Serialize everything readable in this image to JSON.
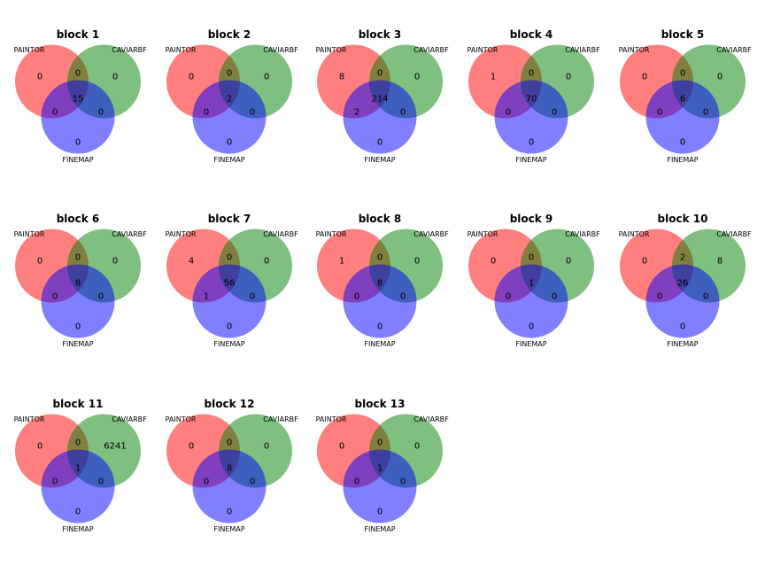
{
  "figure": {
    "set_labels": [
      "PAINTOR",
      "CAVIARBF",
      "FINEMAP"
    ],
    "colors": {
      "set_a": "#ff0000",
      "set_b": "#008000",
      "set_c": "#0000ff"
    },
    "region_order": [
      "a_only",
      "b_only",
      "ab_only",
      "c_only",
      "ac_only",
      "bc_only",
      "abc"
    ],
    "blocks": [
      {
        "title": "block 1",
        "counts": {
          "a_only": "0",
          "b_only": "0",
          "ab_only": "0",
          "c_only": "0",
          "ac_only": "0",
          "bc_only": "0",
          "abc": "15"
        }
      },
      {
        "title": "block 2",
        "counts": {
          "a_only": "0",
          "b_only": "0",
          "ab_only": "0",
          "c_only": "0",
          "ac_only": "0",
          "bc_only": "0",
          "abc": "2"
        }
      },
      {
        "title": "block 3",
        "counts": {
          "a_only": "8",
          "b_only": "0",
          "ab_only": "0",
          "c_only": "0",
          "ac_only": "2",
          "bc_only": "0",
          "abc": "214"
        }
      },
      {
        "title": "block 4",
        "counts": {
          "a_only": "1",
          "b_only": "0",
          "ab_only": "0",
          "c_only": "0",
          "ac_only": "0",
          "bc_only": "0",
          "abc": "70"
        }
      },
      {
        "title": "block 5",
        "counts": {
          "a_only": "0",
          "b_only": "0",
          "ab_only": "0",
          "c_only": "0",
          "ac_only": "0",
          "bc_only": "0",
          "abc": "6"
        }
      },
      {
        "title": "block 6",
        "counts": {
          "a_only": "0",
          "b_only": "0",
          "ab_only": "0",
          "c_only": "0",
          "ac_only": "0",
          "bc_only": "0",
          "abc": "8"
        }
      },
      {
        "title": "block 7",
        "counts": {
          "a_only": "4",
          "b_only": "0",
          "ab_only": "0",
          "c_only": "0",
          "ac_only": "1",
          "bc_only": "0",
          "abc": "56"
        }
      },
      {
        "title": "block 8",
        "counts": {
          "a_only": "1",
          "b_only": "0",
          "ab_only": "0",
          "c_only": "0",
          "ac_only": "0",
          "bc_only": "0",
          "abc": "8"
        }
      },
      {
        "title": "block 9",
        "counts": {
          "a_only": "0",
          "b_only": "0",
          "ab_only": "0",
          "c_only": "0",
          "ac_only": "0",
          "bc_only": "0",
          "abc": "1"
        }
      },
      {
        "title": "block 10",
        "counts": {
          "a_only": "0",
          "b_only": "8",
          "ab_only": "2",
          "c_only": "0",
          "ac_only": "0",
          "bc_only": "0",
          "abc": "26"
        }
      },
      {
        "title": "block 11",
        "counts": {
          "a_only": "0",
          "b_only": "6241",
          "ab_only": "0",
          "c_only": "0",
          "ac_only": "0",
          "bc_only": "0",
          "abc": "1"
        }
      },
      {
        "title": "block 12",
        "counts": {
          "a_only": "0",
          "b_only": "0",
          "ab_only": "0",
          "c_only": "0",
          "ac_only": "0",
          "bc_only": "0",
          "abc": "8"
        }
      },
      {
        "title": "block 13",
        "counts": {
          "a_only": "0",
          "b_only": "0",
          "ab_only": "0",
          "c_only": "0",
          "ac_only": "0",
          "bc_only": "0",
          "abc": "1"
        }
      }
    ]
  }
}
